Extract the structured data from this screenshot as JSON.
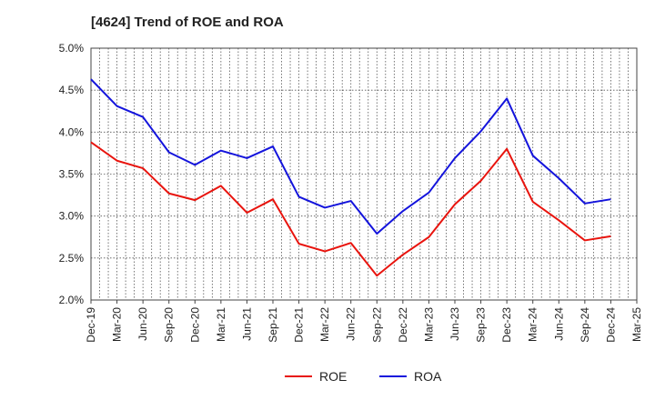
{
  "chart_data": {
    "type": "line",
    "title": "[4624]  Trend of ROE and ROA",
    "xlabel": "",
    "ylabel": "",
    "x": [
      "Dec-19",
      "Mar-20",
      "Jun-20",
      "Sep-20",
      "Dec-20",
      "Mar-21",
      "Jun-21",
      "Sep-21",
      "Dec-21",
      "Mar-22",
      "Jun-22",
      "Sep-22",
      "Dec-22",
      "Mar-23",
      "Jun-23",
      "Sep-23",
      "Dec-23",
      "Mar-24",
      "Jun-24",
      "Sep-24",
      "Dec-24",
      "Mar-25"
    ],
    "ylim": [
      0.02,
      0.05
    ],
    "yticks": [
      0.02,
      0.025,
      0.03,
      0.035,
      0.04,
      0.045,
      0.05
    ],
    "ytick_labels": [
      "2.0%",
      "2.5%",
      "3.0%",
      "3.5%",
      "4.0%",
      "4.5%",
      "5.0%"
    ],
    "grid": true,
    "legend_position": "bottom",
    "series": [
      {
        "name": "ROE",
        "color": "#e8140e",
        "values": [
          0.0388,
          0.0366,
          0.0357,
          0.0327,
          0.0319,
          0.0336,
          0.0304,
          0.032,
          0.0267,
          0.0258,
          0.0268,
          0.0229,
          0.0254,
          0.0275,
          0.0314,
          0.0342,
          0.038,
          0.0317,
          0.0295,
          0.0271,
          0.0276,
          null
        ]
      },
      {
        "name": "ROA",
        "color": "#1414dc",
        "values": [
          0.0463,
          0.0431,
          0.0418,
          0.0376,
          0.0361,
          0.0378,
          0.0369,
          0.0383,
          0.0323,
          0.031,
          0.0318,
          0.0279,
          0.0306,
          0.0328,
          0.0369,
          0.0401,
          0.044,
          0.0372,
          0.0345,
          0.0315,
          0.032,
          null
        ]
      }
    ]
  }
}
